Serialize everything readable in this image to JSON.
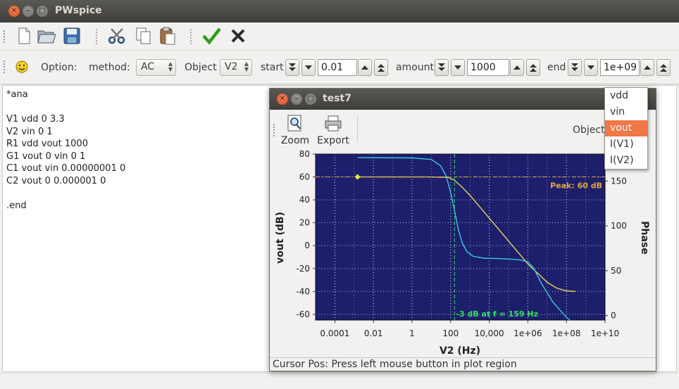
{
  "window": {
    "title": "PWspice"
  },
  "toolbar_icons": [
    "new-file-icon",
    "open-folder-icon",
    "save-icon",
    "cut-icon",
    "copy-icon",
    "paste-icon",
    "check-icon",
    "stop-icon"
  ],
  "options": {
    "label": "Option:",
    "method_label": "method:",
    "method_value": "AC",
    "object_label": "Object",
    "object_value": "V2",
    "start_label": "start",
    "start_value": "0.01",
    "amount_label": "amount",
    "amount_value": "1000",
    "end_label": "end",
    "end_value": "1e+09"
  },
  "editor": {
    "text": "*ana\n\nV1 vdd 0 3.3\nV2 vin 0 1\nR1 vdd vout 1000\nG1 vout 0 vin 0 1\nC1 vout vin 0.00000001 0\nC2 vout 0 0.000001 0\n\n.end"
  },
  "plot_window": {
    "title": "test7",
    "zoom_label": "Zoom",
    "export_label": "Export",
    "object_label": "Object",
    "status": "Cursor Pos: Press left mouse button in plot region"
  },
  "dropdown": {
    "items": [
      "vdd",
      "vin",
      "vout",
      "I(V1)",
      "I(V2)"
    ],
    "selected": "vout",
    "selected_index": 2
  },
  "chart_data": {
    "type": "line",
    "x_scale": "log",
    "xlabel": "V2 (Hz)",
    "ylabel": "vout  (dB)",
    "y2label": "Phase",
    "xlim": [
      1e-05,
      10000000000
    ],
    "ylim": [
      -65,
      80
    ],
    "y2lim": [
      -5,
      180
    ],
    "x_ticks": [
      "0.0001",
      "0.01",
      "1",
      "100",
      "10,000",
      "1e+06",
      "1e+08",
      "1e+10"
    ],
    "y_ticks": [
      "80",
      "60",
      "40",
      "20",
      "0",
      "-20",
      "-40",
      "-60"
    ],
    "y2_ticks": [
      "150",
      "100",
      "50",
      "0"
    ],
    "grid": true,
    "background": "#1d1f6c",
    "series": [
      {
        "color": "#e3d75a",
        "axis": "left",
        "x": [
          0.0015,
          1,
          10,
          80,
          159,
          400,
          1000,
          10000,
          100000,
          1000000,
          10000000,
          30000000,
          100000000,
          300000000
        ],
        "y": [
          60,
          60,
          60,
          59.6,
          57,
          51,
          44,
          24,
          4,
          -16,
          -32,
          -37,
          -39.5,
          -40
        ]
      },
      {
        "color": "#3cc6e6",
        "axis": "right",
        "x": [
          0.0015,
          1,
          10,
          30,
          60,
          100,
          159,
          250,
          400,
          700,
          1500,
          5000,
          30000,
          100000,
          300000,
          1000000,
          2000000,
          5000000,
          20000000,
          100000000,
          150000000
        ],
        "y": [
          176,
          175.7,
          174,
          167,
          155,
          137,
          117,
          96,
          81,
          71,
          66,
          64,
          63.5,
          63,
          62.5,
          60,
          53,
          36,
          15,
          -2,
          -5
        ]
      }
    ],
    "annotations": [
      {
        "text": "Peak: 60 dB",
        "color": "#e3a93a",
        "y": 60
      },
      {
        "text": "-3 dB at f = 159 Hz",
        "color": "#2fe060",
        "x": 159
      }
    ],
    "marker": {
      "x": 0.0015,
      "y": 60,
      "color": "#f0f030"
    }
  }
}
